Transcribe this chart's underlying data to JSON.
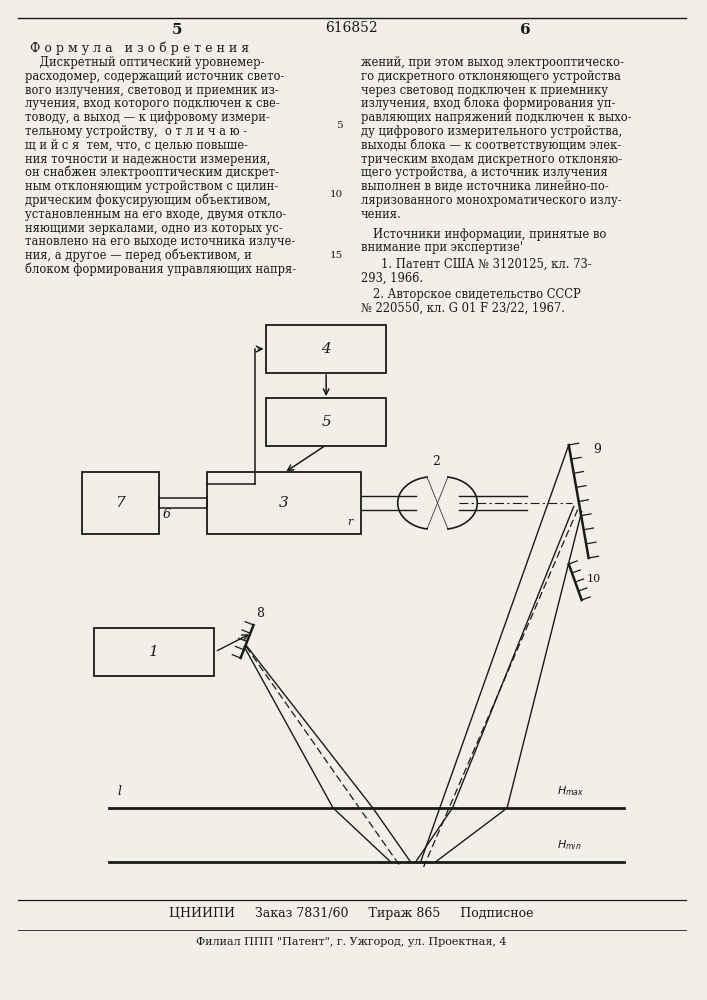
{
  "page_number_left": "5",
  "page_number_right": "6",
  "patent_number": "616852",
  "bg_color": "#f2efe9",
  "text_color": "#1a1a1a",
  "bottom_line1": "ЦНИИПИ     Заказ 7831/60     Тираж 865     Подписное",
  "bottom_line2": "Филиал ППП \"Патент\", г. Ужгород, ул. Проектная, 4"
}
